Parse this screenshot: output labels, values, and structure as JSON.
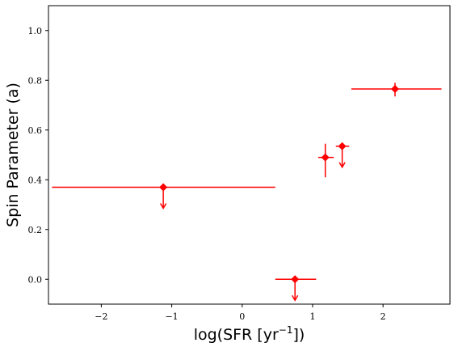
{
  "chart_data": {
    "type": "scatter",
    "xlabel": "log(SFR [yr",
    "xlabel_sup": "−1",
    "xlabel_tail": "])",
    "ylabel": "Spin Parameter (a)",
    "xlim": [
      -2.75,
      2.95
    ],
    "ylim": [
      -0.1,
      1.1
    ],
    "x_ticks": [
      -2,
      -1,
      0,
      1,
      2
    ],
    "x_tick_labels": [
      "−2",
      "−1",
      "0",
      "1",
      "2"
    ],
    "y_ticks": [
      0.0,
      0.2,
      0.4,
      0.6,
      0.8,
      1.0
    ],
    "y_tick_labels": [
      "0.0",
      "0.2",
      "0.4",
      "0.6",
      "0.8",
      "1.0"
    ],
    "grid": false,
    "marker_color": "#ff0000",
    "points": [
      {
        "x": -1.12,
        "y": 0.37,
        "x_low": -2.7,
        "x_high": 0.47,
        "upper_limit": true
      },
      {
        "x": 0.75,
        "y": 0.0,
        "x_low": 0.47,
        "x_high": 1.05,
        "upper_limit": true
      },
      {
        "x": 1.18,
        "y": 0.49,
        "x_low": 1.08,
        "x_high": 1.3,
        "y_low": 0.41,
        "y_high": 0.545
      },
      {
        "x": 1.42,
        "y": 0.535,
        "x_low": 1.33,
        "x_high": 1.52,
        "upper_limit": true
      },
      {
        "x": 2.17,
        "y": 0.765,
        "x_low": 1.55,
        "x_high": 2.83,
        "y_low": 0.735,
        "y_high": 0.79
      }
    ]
  }
}
